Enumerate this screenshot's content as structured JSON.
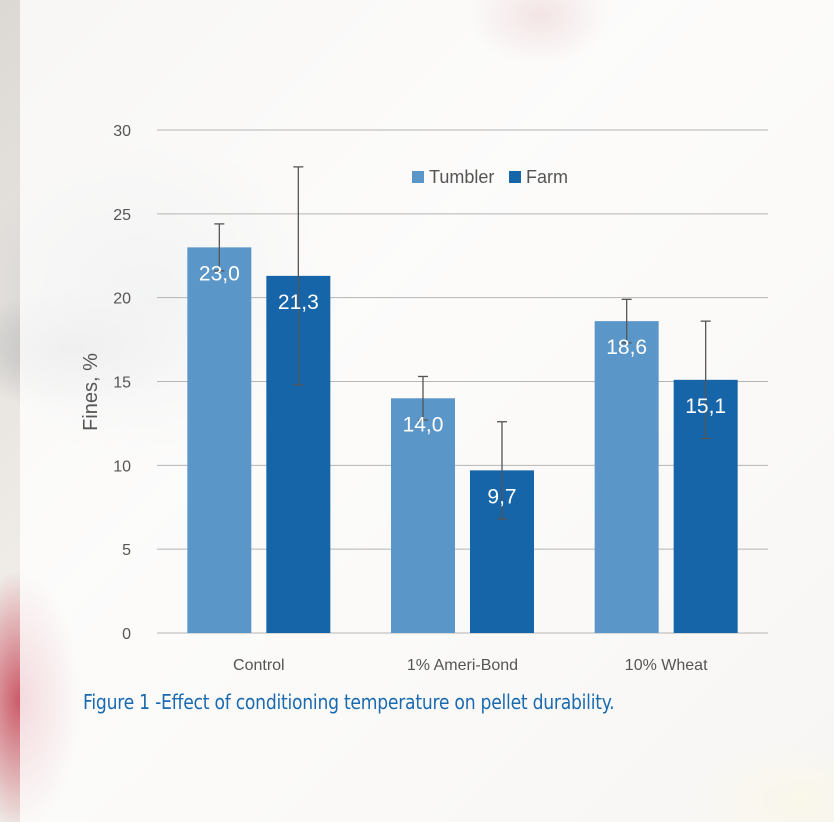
{
  "chart_data": {
    "type": "bar",
    "title": "",
    "xlabel": "",
    "ylabel": "Fines, %",
    "ylim": [
      0,
      30
    ],
    "yticks": [
      0,
      5,
      10,
      15,
      20,
      25,
      30
    ],
    "grid": true,
    "legend_position": "top",
    "categories": [
      "Control",
      "1% Ameri-Bond",
      "10% Wheat"
    ],
    "series": [
      {
        "name": "Tumbler",
        "color": "#5b96c9",
        "values": [
          23.0,
          14.0,
          18.6
        ],
        "value_labels": [
          "23,0",
          "14,0",
          "18,6"
        ],
        "error": [
          1.4,
          1.3,
          1.3
        ]
      },
      {
        "name": "Farm",
        "color": "#1565a8",
        "values": [
          21.3,
          9.7,
          15.1
        ],
        "value_labels": [
          "21,3",
          "9,7",
          "15,1"
        ],
        "error": [
          6.5,
          2.9,
          3.5
        ]
      }
    ]
  },
  "caption": "Figure 1 -Effect of conditioning temperature on pellet durability."
}
